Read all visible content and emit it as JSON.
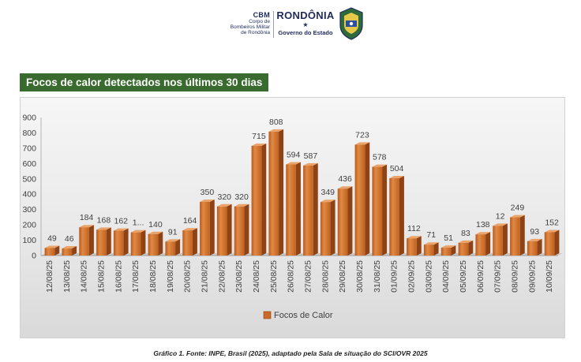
{
  "header": {
    "cbm_title": "CBM",
    "cbm_line1": "Corpo de",
    "cbm_line2": "Bombeiros Militar",
    "cbm_line3": "de Rondônia",
    "state_title": "RONDÔNIA",
    "state_subtitle": "Governo do Estado"
  },
  "caption": "Gráfico 1. Fonte: INPE, Brasil (2025), adaptado pela Sala de situação do SCI/OVR 2025",
  "chart_data": {
    "type": "bar",
    "title": "Focos de calor detectados nos últimos 30 dias",
    "categories": [
      "12/08/25",
      "13/08/25",
      "14/08/25",
      "15/08/25",
      "16/08/25",
      "17/08/25",
      "18/08/25",
      "19/08/25",
      "20/08/25",
      "21/08/25",
      "22/08/25",
      "23/08/25",
      "24/08/25",
      "25/08/25",
      "26/08/25",
      "27/08/25",
      "28/08/25",
      "29/08/25",
      "30/08/25",
      "31/08/25",
      "01/09/25",
      "02/09/25",
      "03/09/25",
      "04/09/25",
      "05/09/25",
      "06/09/25",
      "07/09/25",
      "08/09/25",
      "09/09/25",
      "10/09/25"
    ],
    "series": [
      {
        "name": "Focos de Calor",
        "values": [
          49,
          46,
          184,
          168,
          162,
          null,
          140,
          91,
          164,
          350,
          320,
          320,
          715,
          808,
          594,
          587,
          349,
          436,
          723,
          578,
          504,
          112,
          71,
          51,
          83,
          138,
          null,
          249,
          93,
          152
        ],
        "value_labels": [
          "49",
          "46",
          "184",
          "168",
          "162",
          "1...",
          "140",
          "91",
          "164",
          "350",
          "320",
          "320",
          "715",
          "808",
          "594",
          "587",
          "349",
          "436",
          "723",
          "578",
          "504",
          "112",
          "71",
          "51",
          "83",
          "138",
          "12",
          "249",
          "93",
          "152"
        ]
      }
    ],
    "ylim": [
      0,
      900
    ],
    "yticks": [
      0,
      100,
      200,
      300,
      400,
      500,
      600,
      700,
      800,
      900
    ],
    "grid": false,
    "legend_position": "bottom",
    "bar_color": "#c96a2a"
  }
}
